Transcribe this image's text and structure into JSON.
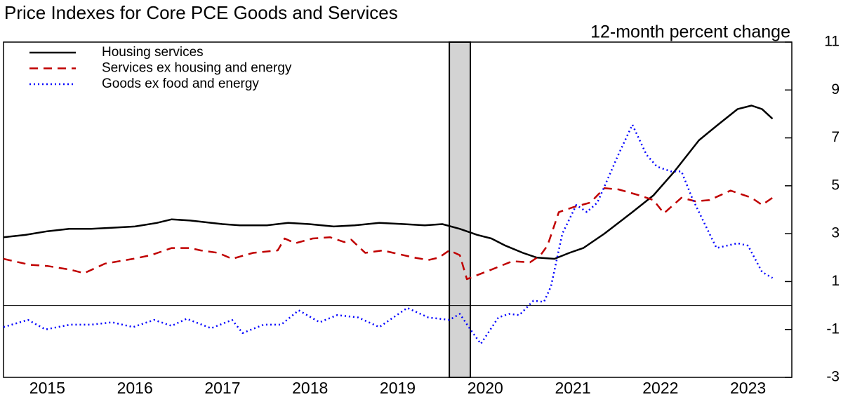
{
  "chart_data": {
    "type": "line",
    "title": "Price Indexes for Core PCE Goods and Services",
    "subtitle": "12-month percent change",
    "xlim": [
      2015,
      2024
    ],
    "xticks": [
      {
        "value": 2015.5,
        "label": "2015"
      },
      {
        "value": 2016.5,
        "label": "2016"
      },
      {
        "value": 2017.5,
        "label": "2017"
      },
      {
        "value": 2018.5,
        "label": "2018"
      },
      {
        "value": 2019.5,
        "label": "2019"
      },
      {
        "value": 2020.5,
        "label": "2020"
      },
      {
        "value": 2021.5,
        "label": "2021"
      },
      {
        "value": 2022.5,
        "label": "2022"
      },
      {
        "value": 2023.5,
        "label": "2023"
      }
    ],
    "ylim": [
      -3,
      11
    ],
    "yticks": [
      -3,
      -1,
      1,
      3,
      5,
      7,
      9,
      11
    ],
    "y_axis_side": "right",
    "legend": "top-left",
    "recession": [
      [
        2020.09,
        2020.33
      ]
    ],
    "series": [
      {
        "name": "Housing services",
        "color": "#000000",
        "dash": "solid",
        "x": [
          2015.0,
          2015.25,
          2015.5,
          2015.75,
          2016.0,
          2016.25,
          2016.5,
          2016.75,
          2016.92,
          2017.13,
          2017.5,
          2017.7,
          2018.01,
          2018.25,
          2018.49,
          2018.77,
          2019.01,
          2019.29,
          2019.57,
          2019.81,
          2020.01,
          2020.21,
          2020.41,
          2020.57,
          2020.73,
          2020.93,
          2021.09,
          2021.29,
          2021.46,
          2021.62,
          2021.86,
          2022.18,
          2022.42,
          2022.66,
          2022.94,
          2023.14,
          2023.38,
          2023.54,
          2023.66,
          2023.78
        ],
        "values": [
          2.85,
          2.95,
          3.1,
          3.2,
          3.2,
          3.25,
          3.3,
          3.45,
          3.6,
          3.55,
          3.4,
          3.35,
          3.35,
          3.45,
          3.4,
          3.3,
          3.35,
          3.45,
          3.4,
          3.35,
          3.4,
          3.2,
          2.95,
          2.8,
          2.5,
          2.2,
          2.0,
          1.95,
          2.2,
          2.4,
          3.0,
          3.9,
          4.6,
          5.6,
          6.9,
          7.5,
          8.2,
          8.35,
          8.2,
          7.8
        ]
      },
      {
        "name": "Services ex housing and energy",
        "color": "#c00000",
        "dash": "dashed",
        "x": [
          2015.0,
          2015.3,
          2015.5,
          2015.76,
          2015.92,
          2016.16,
          2016.48,
          2016.68,
          2016.92,
          2017.13,
          2017.25,
          2017.45,
          2017.61,
          2017.85,
          2018.13,
          2018.21,
          2018.33,
          2018.53,
          2018.73,
          2018.89,
          2018.97,
          2019.13,
          2019.33,
          2019.45,
          2019.69,
          2019.85,
          2019.97,
          2020.09,
          2020.21,
          2020.29,
          2020.57,
          2020.81,
          2021.01,
          2021.13,
          2021.21,
          2021.34,
          2021.5,
          2021.7,
          2021.86,
          2022.02,
          2022.26,
          2022.42,
          2022.54,
          2022.74,
          2022.9,
          2023.06,
          2023.3,
          2023.54,
          2023.66,
          2023.78
        ],
        "values": [
          1.95,
          1.7,
          1.65,
          1.5,
          1.35,
          1.75,
          1.95,
          2.1,
          2.4,
          2.4,
          2.3,
          2.2,
          1.95,
          2.2,
          2.3,
          2.8,
          2.6,
          2.8,
          2.85,
          2.65,
          2.75,
          2.2,
          2.3,
          2.2,
          2.0,
          1.9,
          2.0,
          2.3,
          2.1,
          1.1,
          1.5,
          1.85,
          1.8,
          2.1,
          2.5,
          3.9,
          4.1,
          4.3,
          4.9,
          4.85,
          4.6,
          4.4,
          3.85,
          4.5,
          4.35,
          4.4,
          4.8,
          4.5,
          4.2,
          4.5
        ]
      },
      {
        "name": "Goods ex food and energy",
        "color": "#0000ff",
        "dash": "dotted",
        "x": [
          2015.0,
          2015.28,
          2015.48,
          2015.76,
          2016.0,
          2016.24,
          2016.48,
          2016.72,
          2016.92,
          2017.09,
          2017.37,
          2017.61,
          2017.73,
          2017.97,
          2018.17,
          2018.37,
          2018.61,
          2018.81,
          2019.05,
          2019.29,
          2019.45,
          2019.61,
          2019.85,
          2020.09,
          2020.21,
          2020.33,
          2020.45,
          2020.65,
          2020.77,
          2020.89,
          2021.05,
          2021.17,
          2021.25,
          2021.38,
          2021.54,
          2021.66,
          2021.78,
          2021.9,
          2022.02,
          2022.18,
          2022.34,
          2022.46,
          2022.62,
          2022.74,
          2022.86,
          2023.02,
          2023.14,
          2023.38,
          2023.5,
          2023.66,
          2023.78
        ],
        "values": [
          -0.9,
          -0.6,
          -1.0,
          -0.8,
          -0.8,
          -0.7,
          -0.9,
          -0.6,
          -0.85,
          -0.55,
          -0.95,
          -0.6,
          -1.15,
          -0.8,
          -0.8,
          -0.2,
          -0.7,
          -0.4,
          -0.5,
          -0.9,
          -0.5,
          -0.1,
          -0.5,
          -0.6,
          -0.35,
          -1.0,
          -1.6,
          -0.5,
          -0.35,
          -0.4,
          0.2,
          0.15,
          0.8,
          3.0,
          4.2,
          3.9,
          4.3,
          5.3,
          6.3,
          7.55,
          6.3,
          5.8,
          5.6,
          5.6,
          4.5,
          3.3,
          2.4,
          2.6,
          2.5,
          1.4,
          1.15
        ]
      }
    ]
  }
}
